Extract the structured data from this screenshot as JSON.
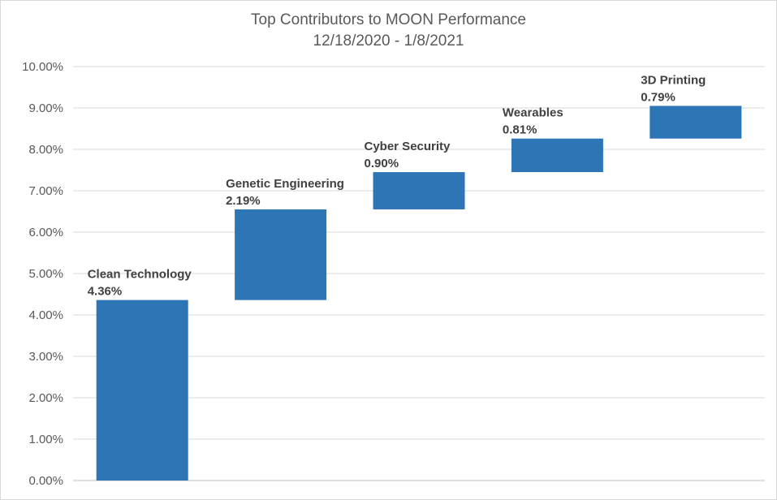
{
  "chart_data": {
    "type": "bar",
    "subtype": "waterfall",
    "title": "Top Contributors to MOON Performance",
    "subtitle": "12/18/2020 - 1/8/2021",
    "xlabel": "",
    "ylabel": "",
    "ylim": [
      0,
      10
    ],
    "yticks": [
      "0.00%",
      "1.00%",
      "2.00%",
      "3.00%",
      "4.00%",
      "5.00%",
      "6.00%",
      "7.00%",
      "8.00%",
      "9.00%",
      "10.00%"
    ],
    "grid": true,
    "bar_color": "#2e75b6",
    "categories": [
      "Clean Technology",
      "Genetic Engineering",
      "Cyber Security",
      "Wearables",
      "3D Printing"
    ],
    "values": [
      4.36,
      2.19,
      0.9,
      0.81,
      0.79
    ],
    "data_labels": [
      "4.36%",
      "2.19%",
      "0.90%",
      "0.81%",
      "0.79%"
    ]
  }
}
